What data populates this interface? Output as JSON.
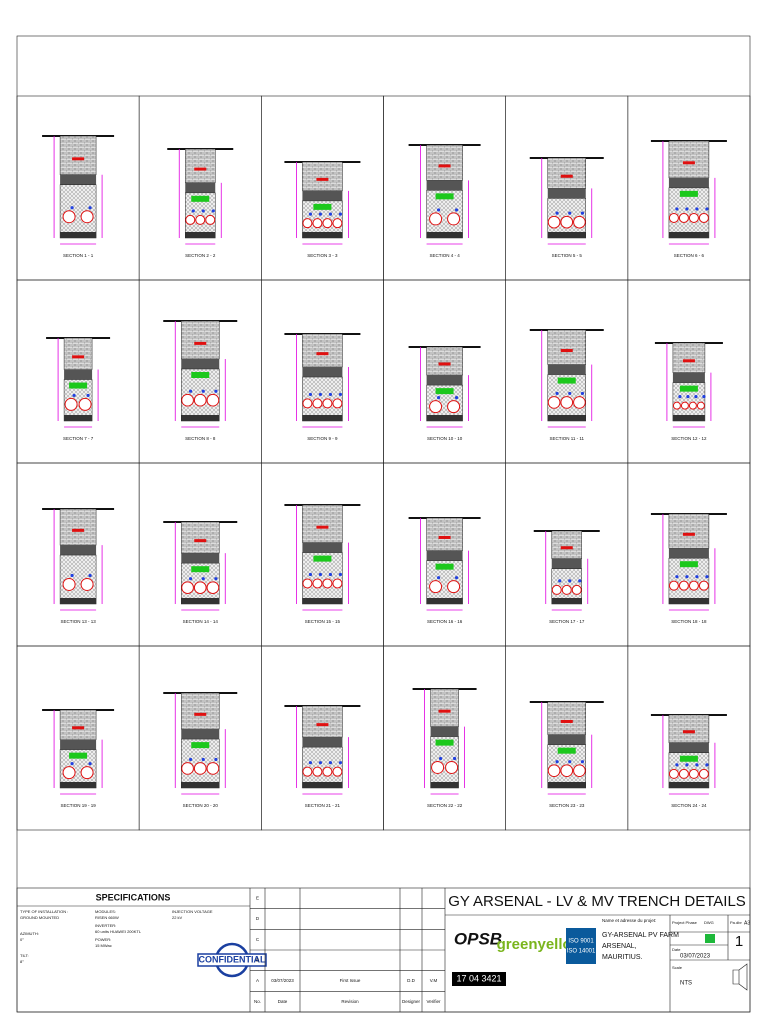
{
  "sections": [
    "SECTION 1 - 1",
    "SECTION 2 - 2",
    "SECTION 3 - 3",
    "SECTION 4 - 4",
    "SECTION 5 - 5",
    "SECTION 6 - 6",
    "SECTION 7 - 7",
    "SECTION 8 - 8",
    "SECTION 9 - 9",
    "SECTION 10 - 10",
    "SECTION 11 - 11",
    "SECTION 12 - 12",
    "SECTION 13 - 13",
    "SECTION 14 - 14",
    "SECTION 15 - 15",
    "SECTION 16 - 16",
    "SECTION 17 - 17",
    "SECTION 18 - 18",
    "SECTION 19 - 19",
    "SECTION 20 - 20",
    "SECTION 21 - 21",
    "SECTION 22 - 22",
    "SECTION 23 - 23",
    "SECTION 24 - 24"
  ],
  "specifications": {
    "title": "SPECIFICATIONS",
    "items": [
      [
        "TYPE OF INSTALLATION :",
        "GROUND MOUNTED"
      ],
      [
        "AZIMUTH:",
        "0°"
      ],
      [
        "TILT:",
        "8°"
      ],
      [
        "MODULES:",
        "RISEN 660W"
      ],
      [
        "INVERTER:",
        "60 units HUAWEI 200KTL"
      ],
      [
        "POWER:",
        "15 MWac"
      ],
      [
        "INJECTION VOLTAGE",
        "22 kV"
      ]
    ],
    "stamp": "CONFIDENTIAL"
  },
  "revisions": {
    "rows": [
      [
        "E",
        "",
        "",
        "",
        ""
      ],
      [
        "D",
        "",
        "",
        "",
        ""
      ],
      [
        "C",
        "",
        "",
        "",
        ""
      ],
      [
        "B",
        "",
        "",
        "",
        ""
      ],
      [
        "A",
        "03/07/2023",
        "First Issue",
        "D.D",
        "V.M"
      ]
    ],
    "header": [
      "No.",
      "Date",
      "Revision",
      "Designer",
      "Verifier"
    ]
  },
  "title_block": {
    "title": "GY ARSENAL - LV & MV TRENCH DETAILS",
    "company": "OPSB",
    "company_number": "17 04 3421",
    "client": "greenyellow",
    "iso": [
      "ISO 9001",
      "ISO 14001"
    ],
    "project_caption": "Name et adresse du projet:",
    "project": [
      "GY-ARSENAL PV FARM",
      "ARSENAL,",
      "MAURITIUS."
    ],
    "phase_label": "Project Phase",
    "dwg_label": "DWG",
    "format_label": "Pa.dbr",
    "format": "A3",
    "sheet": "1",
    "date_label": "Date",
    "date": "03/07/2023",
    "scale_label": "Scale",
    "scale": "NTS"
  }
}
